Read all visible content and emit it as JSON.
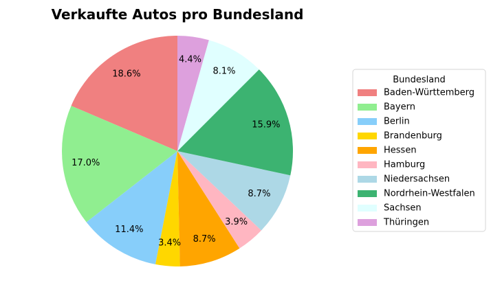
{
  "chart_data": {
    "type": "pie",
    "title": "Verkaufte Autos pro Bundesland",
    "legend": {
      "title": "Bundesland",
      "placement": "right"
    },
    "slices": [
      {
        "label": "Baden-Württemberg",
        "value": 18.6,
        "pct_label": "18.6%",
        "color": "#F08080"
      },
      {
        "label": "Bayern",
        "value": 17.0,
        "pct_label": "17.0%",
        "color": "#90EE90"
      },
      {
        "label": "Berlin",
        "value": 11.4,
        "pct_label": "11.4%",
        "color": "#87CEFA"
      },
      {
        "label": "Brandenburg",
        "value": 3.4,
        "pct_label": "3.4%",
        "color": "#FFD700"
      },
      {
        "label": "Hessen",
        "value": 8.7,
        "pct_label": "8.7%",
        "color": "#FFA500"
      },
      {
        "label": "Hamburg",
        "value": 3.9,
        "pct_label": "3.9%",
        "color": "#FFB6C1"
      },
      {
        "label": "Niedersachsen",
        "value": 8.7,
        "pct_label": "8.7%",
        "color": "#ADD8E6"
      },
      {
        "label": "Nordrhein-Westfalen",
        "value": 15.9,
        "pct_label": "15.9%",
        "color": "#3CB371"
      },
      {
        "label": "Sachsen",
        "value": 8.1,
        "pct_label": "8.1%",
        "color": "#E0FFFF"
      },
      {
        "label": "Thüringen",
        "value": 4.4,
        "pct_label": "4.4%",
        "color": "#DDA0DD"
      }
    ]
  }
}
